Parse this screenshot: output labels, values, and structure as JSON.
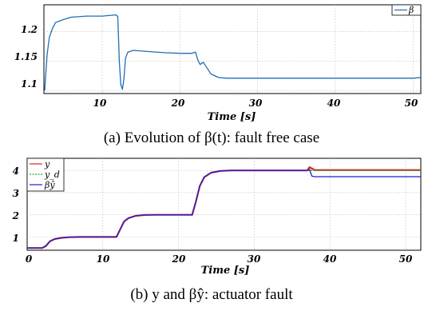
{
  "chart_data": [
    {
      "type": "line",
      "caption": "(a) Evolution of β(t): fault free case",
      "xlabel": "Time [s]",
      "ylabel": "",
      "xlim": [
        2.5,
        51
      ],
      "ylim": [
        1.095,
        1.245
      ],
      "xticks": [
        "10",
        "20",
        "30",
        "40",
        "50"
      ],
      "yticks": [
        "1.1",
        "1.15",
        "1.2"
      ],
      "grid": true,
      "legend_position": "top-right",
      "colors": {
        "beta": "#1f6fb4"
      },
      "series": [
        {
          "name": "β",
          "x": [
            2.6,
            2.9,
            3.2,
            3.6,
            4.0,
            5.0,
            6.0,
            8.0,
            10.0,
            11.8,
            12.0,
            12.2,
            12.4,
            12.6,
            12.8,
            13.0,
            13.3,
            14,
            16,
            18,
            20,
            21.5,
            22,
            22.3,
            22.6,
            23,
            23.5,
            24,
            25,
            26,
            30,
            40,
            50,
            51
          ],
          "y": [
            1.1,
            1.16,
            1.19,
            1.205,
            1.215,
            1.22,
            1.224,
            1.226,
            1.226,
            1.228,
            1.225,
            1.15,
            1.11,
            1.102,
            1.12,
            1.155,
            1.165,
            1.168,
            1.166,
            1.164,
            1.163,
            1.163,
            1.165,
            1.152,
            1.144,
            1.148,
            1.138,
            1.128,
            1.122,
            1.121,
            1.121,
            1.121,
            1.121,
            1.122
          ]
        }
      ]
    },
    {
      "type": "line",
      "caption": "(b) y and βŷ: actuator fault",
      "xlabel": "Time [s]",
      "ylabel": "",
      "xlim": [
        0,
        52
      ],
      "ylim": [
        0.4,
        4.55
      ],
      "xticks": [
        "0",
        "10",
        "20",
        "30",
        "40",
        "50"
      ],
      "yticks": [
        "1",
        "2",
        "3",
        "4"
      ],
      "grid": true,
      "legend_position": "top-left",
      "series": [
        {
          "name": "y",
          "color": "#d62728",
          "x": [
            0,
            2.0,
            2.5,
            3.0,
            3.6,
            4.5,
            5.5,
            7,
            11.8,
            12.3,
            12.8,
            13.4,
            14.3,
            15.5,
            17,
            21.8,
            22.3,
            22.8,
            23.4,
            24.3,
            25.5,
            27,
            30,
            37.0,
            37.3,
            38,
            52
          ],
          "y": [
            0.5,
            0.5,
            0.6,
            0.8,
            0.9,
            0.96,
            0.99,
            1.0,
            1.0,
            1.35,
            1.7,
            1.85,
            1.95,
            1.99,
            2.0,
            2.0,
            2.6,
            3.3,
            3.7,
            3.9,
            3.98,
            4.0,
            4.0,
            4.0,
            4.15,
            4.02,
            4.02
          ]
        },
        {
          "name": "y_d",
          "color": "#2ca02c",
          "x": [
            0,
            2.0,
            2.5,
            3.0,
            3.6,
            4.5,
            5.5,
            7,
            11.8,
            12.3,
            12.8,
            13.4,
            14.3,
            15.5,
            17,
            21.8,
            22.3,
            22.8,
            23.4,
            24.3,
            25.5,
            27,
            52
          ],
          "y": [
            0.5,
            0.5,
            0.6,
            0.8,
            0.9,
            0.96,
            0.99,
            1.0,
            1.0,
            1.35,
            1.7,
            1.85,
            1.95,
            1.99,
            2.0,
            2.0,
            2.6,
            3.3,
            3.7,
            3.9,
            3.98,
            4.0,
            4.0
          ]
        },
        {
          "name": "βŷ",
          "color": "#1f1fcf",
          "x": [
            0,
            2.0,
            2.5,
            3.0,
            3.6,
            4.5,
            5.5,
            7,
            11.8,
            12.3,
            12.8,
            13.4,
            14.3,
            15.5,
            17,
            21.8,
            22.3,
            22.8,
            23.4,
            24.3,
            25.5,
            27,
            37.0,
            37.3,
            37.6,
            38,
            52
          ],
          "y": [
            0.5,
            0.5,
            0.6,
            0.8,
            0.9,
            0.96,
            0.99,
            1.0,
            1.0,
            1.35,
            1.7,
            1.85,
            1.95,
            1.99,
            2.0,
            2.0,
            2.6,
            3.3,
            3.7,
            3.9,
            3.98,
            4.0,
            4.0,
            4.05,
            3.75,
            3.72,
            3.72
          ]
        }
      ]
    }
  ]
}
